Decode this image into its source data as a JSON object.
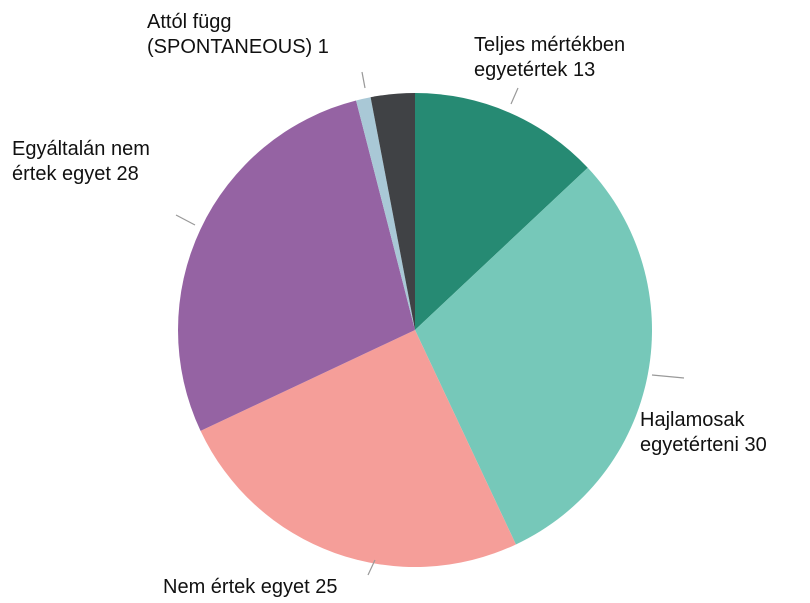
{
  "chart_data": {
    "type": "pie",
    "categories": [
      "Teljes mértékben egyetértek",
      "Hajlamosak egyetérteni",
      "Nem értek egyet",
      "Egyáltalán nem értek egyet",
      "Attól függ (SPONTANEOUS)",
      null
    ],
    "values": [
      13,
      30,
      25,
      28,
      1,
      3
    ],
    "colors": [
      "#268a73",
      "#76c8b9",
      "#f59e99",
      "#9563a3",
      "#a9c8d6",
      "#404245"
    ]
  }
}
